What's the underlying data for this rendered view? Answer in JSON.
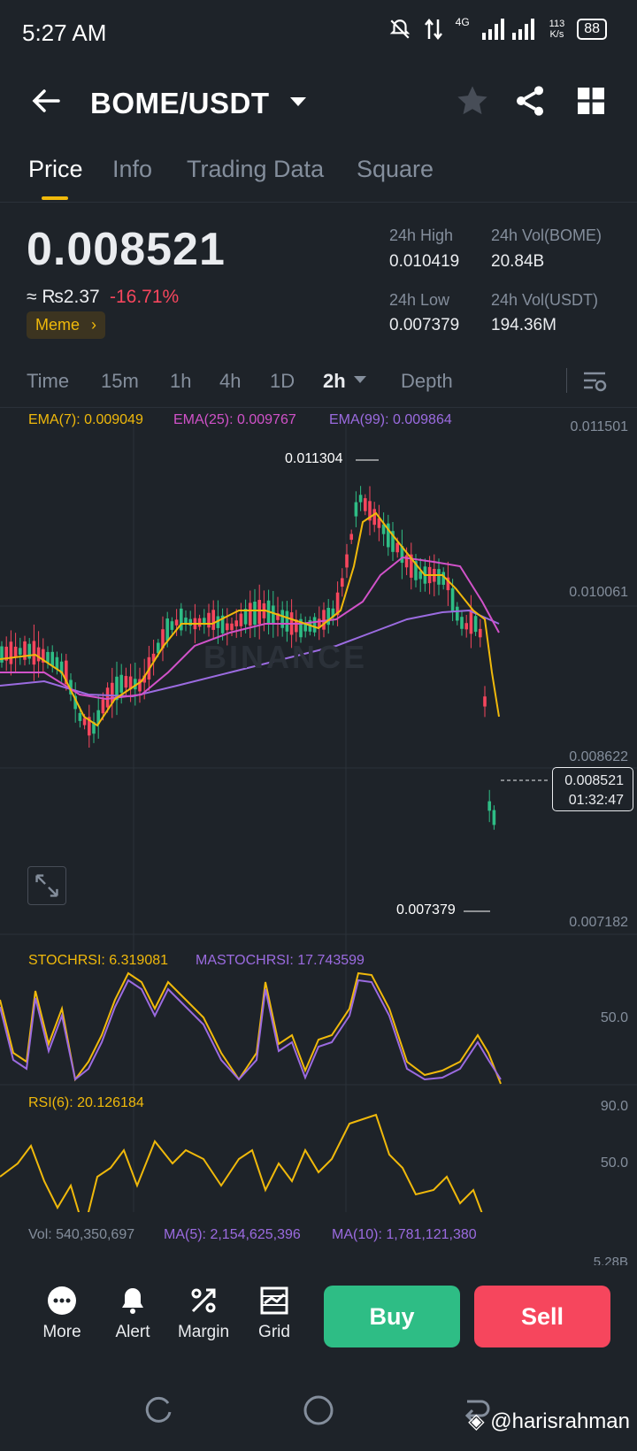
{
  "status_bar": {
    "time": "5:27 AM",
    "network": "4G",
    "speed_value": "113",
    "speed_unit": "K/s",
    "battery": "88"
  },
  "header": {
    "pair": "BOME/USDT"
  },
  "tabs": [
    {
      "label": "Price"
    },
    {
      "label": "Info"
    },
    {
      "label": "Trading Data"
    },
    {
      "label": "Square"
    }
  ],
  "price": {
    "last": "0.008521",
    "fiat": "≈ ₨2.37",
    "change": "-16.71%",
    "tag": "Meme",
    "high_label": "24h High",
    "high": "0.010419",
    "low_label": "24h Low",
    "low": "0.007379",
    "vol_base_label": "24h Vol(BOME)",
    "vol_base": "20.84B",
    "vol_quote_label": "24h Vol(USDT)",
    "vol_quote": "194.36M"
  },
  "intervals": [
    "Time",
    "15m",
    "1h",
    "4h",
    "1D",
    "2h",
    "Depth"
  ],
  "chart": {
    "ema7": "EMA(7): 0.009049",
    "ema25": "EMA(25): 0.009767",
    "ema99": "EMA(99): 0.009864",
    "axis": [
      "0.011501",
      "0.010061",
      "0.008622",
      "0.007182"
    ],
    "high_marker": "0.011304",
    "low_marker": "0.007379",
    "current_price": "0.008521",
    "countdown": "01:32:47",
    "watermark": "BINANCE"
  },
  "stochrsi": {
    "label": "STOCHRSI: 6.319081",
    "ma_label": "MASTOCHRSI: 17.743599",
    "axis": "50.0"
  },
  "rsi": {
    "label": "RSI(6): 20.126184",
    "axis_top": "90.0",
    "axis_mid": "50.0"
  },
  "volume": {
    "label": "Vol: 540,350,697",
    "ma5": "MA(5): 2,154,625,396",
    "ma10": "MA(10): 1,781,121,380",
    "axis": "5.28B"
  },
  "bottom": {
    "more": "More",
    "alert": "Alert",
    "margin": "Margin",
    "grid": "Grid",
    "buy": "Buy",
    "sell": "Sell"
  },
  "watermark_user": "@harisrahman",
  "colors": {
    "up": "#2ebd85",
    "down": "#f6465d",
    "accent": "#f0b90b",
    "ema7": "#f0b90b",
    "ema25": "#d152c9",
    "ema99": "#9b6be0"
  }
}
